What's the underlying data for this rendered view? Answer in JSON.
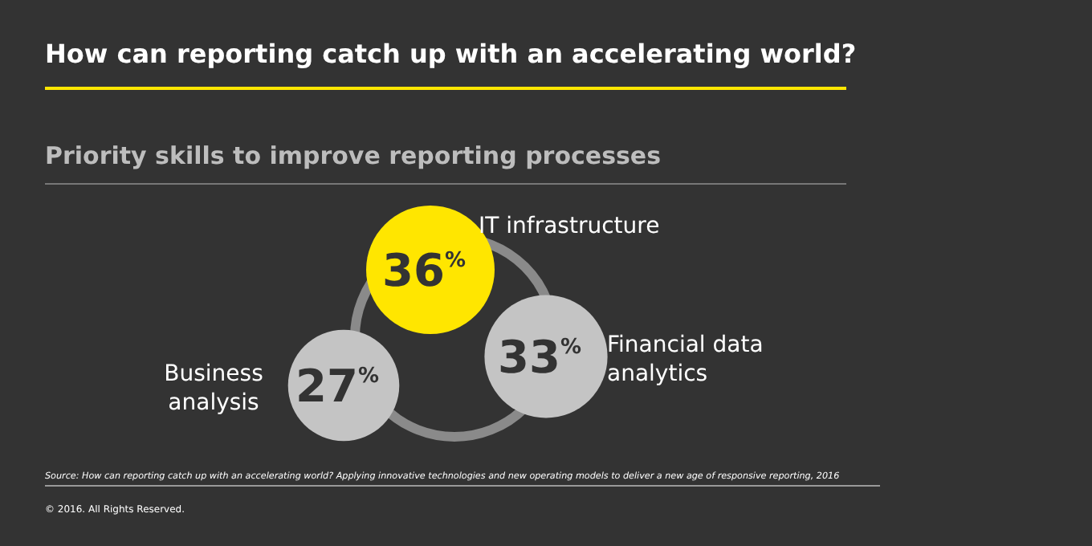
{
  "chart_data": {
    "type": "other",
    "title": "How can reporting catch up with an accelerating world?",
    "subtitle": "Priority skills to improve reporting processes",
    "categories": [
      "IT infrastructure",
      "Financial data analytics",
      "Business analysis"
    ],
    "values": [
      36,
      33,
      27
    ],
    "value_labels": [
      "36$^{%}$",
      "33$^{%}$",
      "27$^{%}$"
    ],
    "colors": [
      "#ffe600",
      "#c4c4c4",
      "#c4c4c4"
    ],
    "annotations": [
      "Source: How can reporting catch up with an accelerating world? Applying innovative technologies and new operating models to deliver a new age of responsive reporting, 2016",
      "© 2016. All Rights Reserved."
    ]
  }
}
